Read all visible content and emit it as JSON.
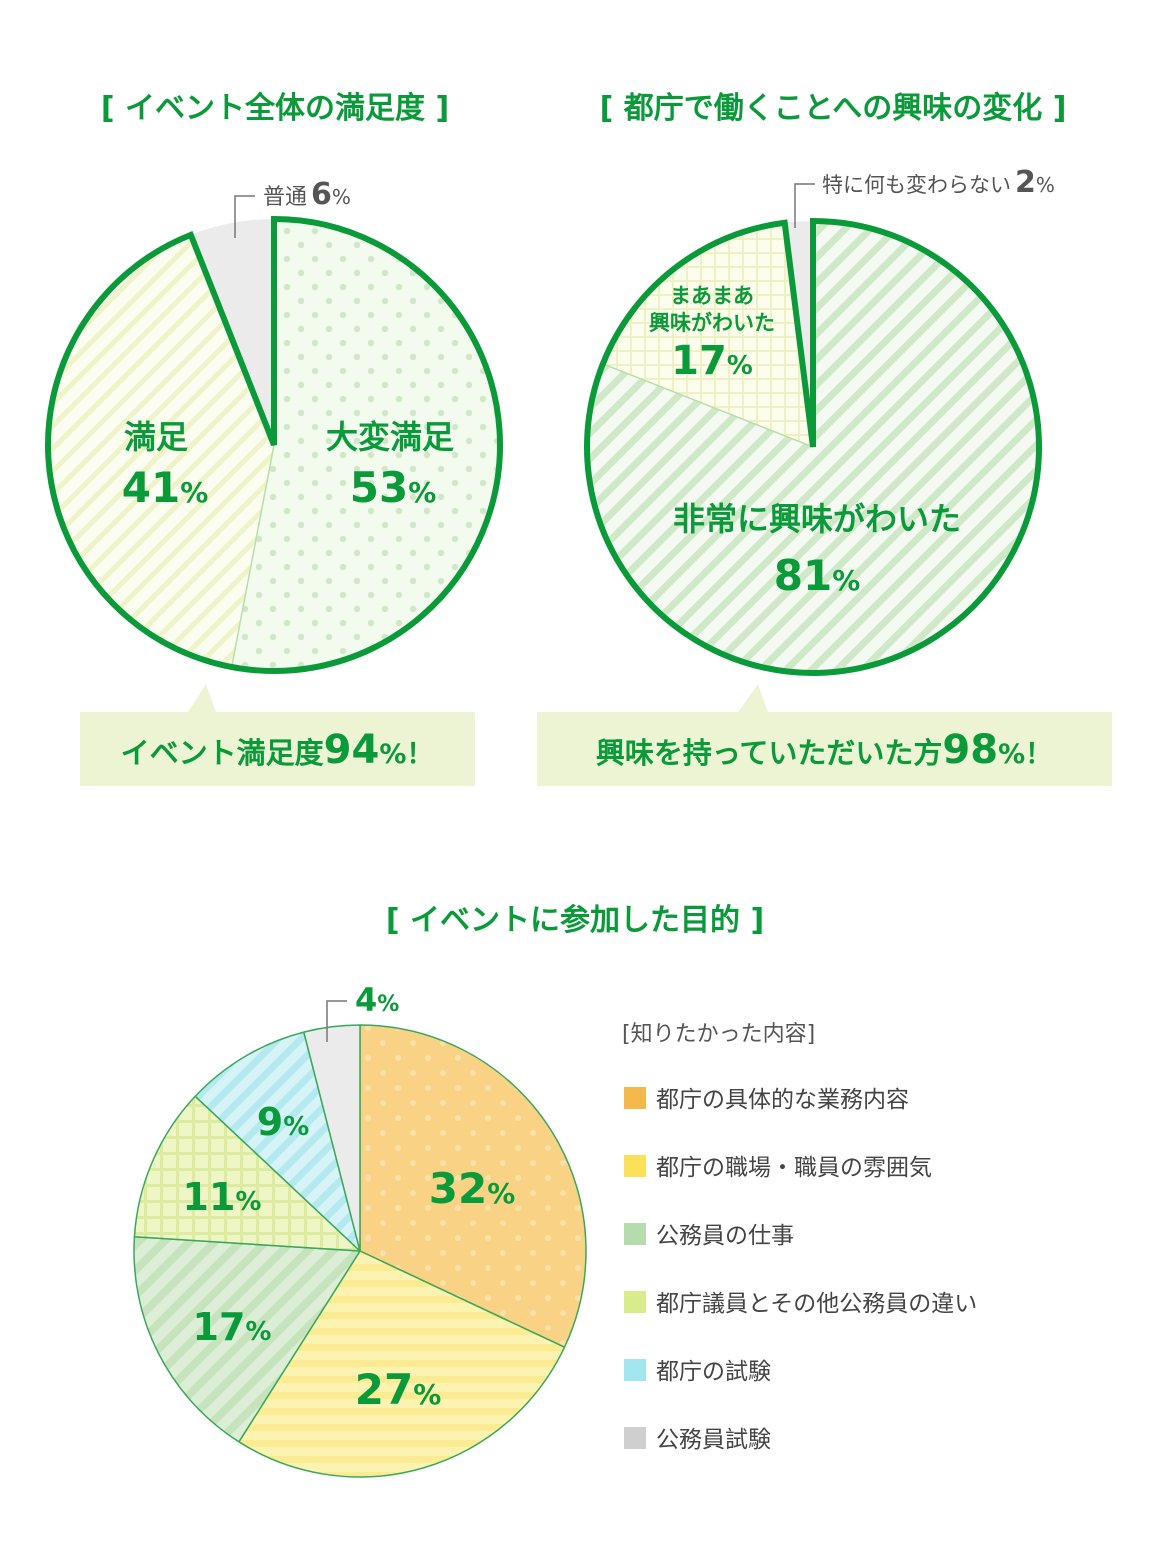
{
  "chart_data": [
    {
      "type": "pie",
      "title": "[ イベント全体の満足度 ]",
      "slices": [
        {
          "label": "大変満足",
          "value": 53,
          "pct": "53",
          "color": "#f3faee",
          "pattern": "dots"
        },
        {
          "label": "満足",
          "value": 41,
          "pct": "41",
          "color": "#fbfdf0",
          "pattern": "diagonal"
        },
        {
          "label": "普通",
          "value": 6,
          "pct": "6",
          "color": "#ebebeb",
          "pattern": "none"
        }
      ],
      "callout": {
        "text": "イベント満足度",
        "number": "94",
        "suffix": "%！"
      }
    },
    {
      "type": "pie",
      "title": "[ 都庁で働くことへの興味の変化 ]",
      "slices": [
        {
          "label": "非常に興味がわいた",
          "value": 81,
          "pct": "81",
          "color": "#e6f4e2",
          "pattern": "diagonal"
        },
        {
          "label_line1": "まあまあ",
          "label_line2": "興味がわいた",
          "value": 17,
          "pct": "17",
          "color": "#fdfdec",
          "pattern": "grid"
        },
        {
          "label": "特に何も変わらない",
          "value": 2,
          "pct": "2",
          "color": "#ebebeb",
          "pattern": "none"
        }
      ],
      "callout": {
        "text": "興味を持っていただいた方",
        "number": "98",
        "suffix": "%！"
      }
    },
    {
      "type": "pie",
      "title": "[ イベントに参加した目的 ]",
      "legend_title": "[知りたかった内容]",
      "legend_position": "right",
      "slices": [
        {
          "label": "都庁の具体的な業務内容",
          "value": 32,
          "pct": "32",
          "color": "#f9d285",
          "swatch": "#f5b84a",
          "pattern": "dots"
        },
        {
          "label": "都庁の職場・職員の雰囲気",
          "value": 27,
          "pct": "27",
          "color": "#fdf3b0",
          "swatch": "#fbe05a",
          "pattern": "horizontal"
        },
        {
          "label": "公務員の仕事",
          "value": 17,
          "pct": "17",
          "color": "#d5ebcf",
          "swatch": "#b6dcae",
          "pattern": "diagonal"
        },
        {
          "label": "都庁議員とその他公務員の違い",
          "value": 11,
          "pct": "11",
          "color": "#eef6c6",
          "swatch": "#d9ec8c",
          "pattern": "grid"
        },
        {
          "label": "都庁の試験",
          "value": 9,
          "pct": "9",
          "color": "#c4eef3",
          "swatch": "#a3e6ef",
          "pattern": "diagonal"
        },
        {
          "label": "公務員試験",
          "value": 4,
          "pct": "4",
          "color": "#ebebeb",
          "swatch": "#cfcfcf",
          "pattern": "none"
        }
      ]
    }
  ],
  "colors": {
    "accent_green": "#0b9a3a",
    "callout_bg": "#ecf4d3"
  }
}
